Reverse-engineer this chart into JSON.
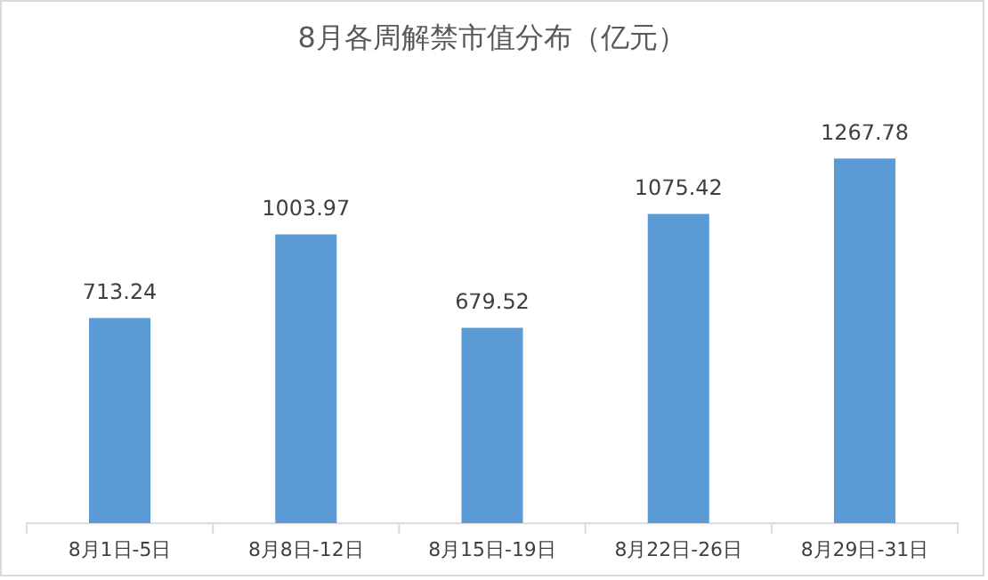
{
  "chart_data": {
    "type": "bar",
    "title": "8月各周解禁市值分布（亿元）",
    "categories": [
      "8月1日-5日",
      "8月8日-12日",
      "8月15日-19日",
      "8月22日-26日",
      "8月29日-31日"
    ],
    "values": [
      713.24,
      1003.97,
      679.52,
      1075.42,
      1267.78
    ],
    "color": "#5b9bd5",
    "data_labels": true
  }
}
